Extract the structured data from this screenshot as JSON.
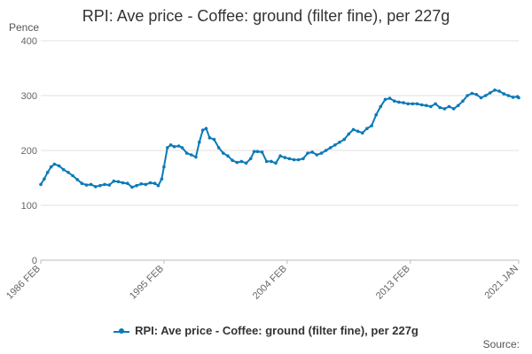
{
  "chart_data": {
    "type": "line",
    "title": "RPI: Ave price - Coffee: ground (filter fine), per 227g",
    "ylabel": "Pence",
    "xlabel": "",
    "ylim": [
      0,
      400
    ],
    "yticks": [
      0,
      100,
      200,
      300,
      400
    ],
    "x_range": [
      "1986 FEB",
      "2021 JAN"
    ],
    "xticks": [
      "1986 FEB",
      "1995 FEB",
      "2004 FEB",
      "2013 FEB",
      "2021 JAN"
    ],
    "grid": "horizontal",
    "legend_position": "bottom",
    "series": [
      {
        "name": "RPI: Ave price - Coffee: ground (filter fine), per 227g",
        "color": "#0c7ab8",
        "points": [
          [
            "1986-02",
            138
          ],
          [
            "1986-05",
            148
          ],
          [
            "1986-08",
            160
          ],
          [
            "1986-11",
            170
          ],
          [
            "1987-02",
            175
          ],
          [
            "1987-06",
            172
          ],
          [
            "1987-10",
            165
          ],
          [
            "1988-02",
            160
          ],
          [
            "1988-06",
            154
          ],
          [
            "1988-10",
            147
          ],
          [
            "1989-02",
            140
          ],
          [
            "1989-06",
            137
          ],
          [
            "1989-10",
            138
          ],
          [
            "1990-02",
            134
          ],
          [
            "1990-06",
            136
          ],
          [
            "1990-10",
            138
          ],
          [
            "1991-02",
            137
          ],
          [
            "1991-06",
            144
          ],
          [
            "1991-10",
            143
          ],
          [
            "1992-02",
            141
          ],
          [
            "1992-06",
            140
          ],
          [
            "1992-10",
            133
          ],
          [
            "1993-02",
            136
          ],
          [
            "1993-06",
            139
          ],
          [
            "1993-10",
            138
          ],
          [
            "1994-02",
            141
          ],
          [
            "1994-06",
            140
          ],
          [
            "1994-09",
            136
          ],
          [
            "1994-12",
            148
          ],
          [
            "1995-02",
            170
          ],
          [
            "1995-05",
            205
          ],
          [
            "1995-08",
            210
          ],
          [
            "1995-11",
            207
          ],
          [
            "1996-03",
            208
          ],
          [
            "1996-06",
            205
          ],
          [
            "1996-10",
            195
          ],
          [
            "1997-02",
            192
          ],
          [
            "1997-06",
            188
          ],
          [
            "1997-09",
            215
          ],
          [
            "1997-12",
            237
          ],
          [
            "1998-03",
            240
          ],
          [
            "1998-06",
            223
          ],
          [
            "1998-10",
            220
          ],
          [
            "1999-02",
            205
          ],
          [
            "1999-06",
            195
          ],
          [
            "1999-10",
            190
          ],
          [
            "2000-02",
            182
          ],
          [
            "2000-06",
            178
          ],
          [
            "2000-10",
            180
          ],
          [
            "2001-02",
            177
          ],
          [
            "2001-06",
            185
          ],
          [
            "2001-09",
            198
          ],
          [
            "2001-12",
            198
          ],
          [
            "2002-04",
            197
          ],
          [
            "2002-08",
            180
          ],
          [
            "2002-12",
            180
          ],
          [
            "2003-04",
            177
          ],
          [
            "2003-08",
            190
          ],
          [
            "2003-12",
            187
          ],
          [
            "2004-04",
            185
          ],
          [
            "2004-08",
            183
          ],
          [
            "2004-12",
            183
          ],
          [
            "2005-04",
            185
          ],
          [
            "2005-08",
            195
          ],
          [
            "2005-12",
            197
          ],
          [
            "2006-04",
            192
          ],
          [
            "2006-08",
            195
          ],
          [
            "2006-12",
            200
          ],
          [
            "2007-04",
            205
          ],
          [
            "2007-08",
            210
          ],
          [
            "2007-12",
            215
          ],
          [
            "2008-04",
            220
          ],
          [
            "2008-08",
            230
          ],
          [
            "2008-12",
            238
          ],
          [
            "2009-04",
            235
          ],
          [
            "2009-08",
            232
          ],
          [
            "2009-12",
            240
          ],
          [
            "2010-04",
            245
          ],
          [
            "2010-08",
            265
          ],
          [
            "2010-12",
            280
          ],
          [
            "2011-04",
            293
          ],
          [
            "2011-08",
            295
          ],
          [
            "2011-12",
            290
          ],
          [
            "2012-04",
            288
          ],
          [
            "2012-08",
            287
          ],
          [
            "2012-12",
            285
          ],
          [
            "2013-04",
            285
          ],
          [
            "2013-08",
            285
          ],
          [
            "2013-12",
            283
          ],
          [
            "2014-04",
            282
          ],
          [
            "2014-08",
            280
          ],
          [
            "2014-12",
            285
          ],
          [
            "2015-04",
            278
          ],
          [
            "2015-08",
            276
          ],
          [
            "2015-12",
            280
          ],
          [
            "2016-04",
            276
          ],
          [
            "2016-08",
            282
          ],
          [
            "2016-12",
            290
          ],
          [
            "2017-04",
            300
          ],
          [
            "2017-08",
            304
          ],
          [
            "2017-12",
            302
          ],
          [
            "2018-04",
            296
          ],
          [
            "2018-08",
            300
          ],
          [
            "2018-12",
            305
          ],
          [
            "2019-04",
            310
          ],
          [
            "2019-08",
            308
          ],
          [
            "2019-12",
            303
          ],
          [
            "2020-04",
            300
          ],
          [
            "2020-08",
            297
          ],
          [
            "2020-12",
            298
          ],
          [
            "2021-01",
            296
          ]
        ]
      }
    ]
  },
  "legend": {
    "label": "RPI: Ave price - Coffee: ground (filter fine), per 227g"
  },
  "footer": {
    "source_label": "Source:"
  }
}
